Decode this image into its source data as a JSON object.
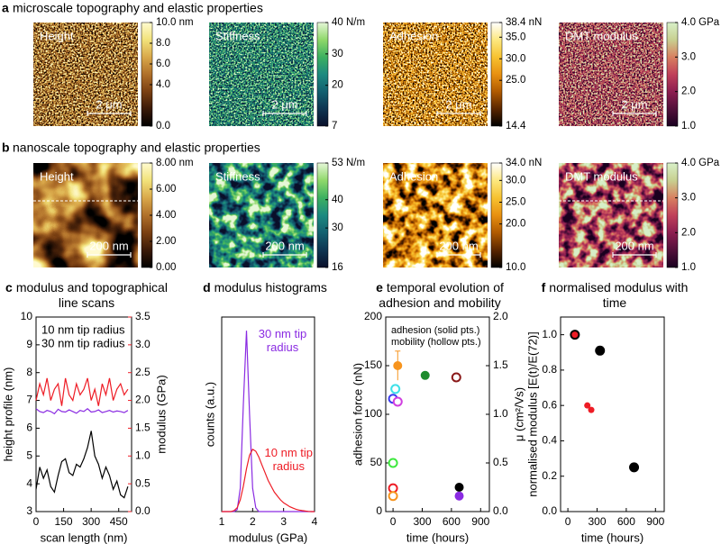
{
  "rows": [
    {
      "label": "a",
      "title": "microscale topography and elastic properties",
      "maps": [
        {
          "name": "Height",
          "scale_bar": "2 μm",
          "lim": [
            0,
            10
          ],
          "ticks": [
            {
              "value": 10,
              "label": "10.0 nm"
            },
            {
              "value": 8,
              "label": "8.0"
            },
            {
              "value": 6,
              "label": "6.0"
            },
            {
              "value": 4,
              "label": "4.0"
            },
            {
              "value": 0,
              "label": "0.0"
            }
          ],
          "colors": [
            "#000000",
            "#3a1a08",
            "#7a3f12",
            "#b0702a",
            "#d9a84a",
            "#f2e27a",
            "#fffbd0"
          ]
        },
        {
          "name": "Stiffness",
          "scale_bar": "2 μm",
          "lim": [
            7,
            40
          ],
          "ticks": [
            {
              "value": 40,
              "label": "40 N/m"
            },
            30,
            20,
            7
          ],
          "colors": [
            "#0a0f2a",
            "#0e3552",
            "#136070",
            "#1c8a80",
            "#3cb060",
            "#8fd86a",
            "#e6f7d8"
          ]
        },
        {
          "name": "Adhesion",
          "scale_bar": "2 μm",
          "lim": [
            14.4,
            38.4
          ],
          "ticks": [
            {
              "value": 38.4,
              "label": "38.4 nN"
            },
            {
              "value": 35,
              "label": "35.0"
            },
            {
              "value": 30,
              "label": "30.0"
            },
            {
              "value": 25,
              "label": "25.0"
            },
            14.4
          ],
          "colors": [
            "#000000",
            "#5a2600",
            "#b05a00",
            "#e89010",
            "#f7c230",
            "#fde880",
            "#ffffff"
          ]
        },
        {
          "name": "DMT modulus",
          "scale_bar": "2 μm",
          "lim": [
            1,
            4
          ],
          "ticks": [
            {
              "value": 4,
              "label": "4.0 GPa"
            },
            {
              "value": 3,
              "label": "3.0"
            },
            {
              "value": 2,
              "label": "2.0"
            },
            {
              "value": 1,
              "label": "1.0"
            }
          ],
          "colors": [
            "#1a0020",
            "#52103a",
            "#8c1e50",
            "#c0405a",
            "#d88060",
            "#c8d090",
            "#d8f0c8"
          ]
        }
      ]
    },
    {
      "label": "b",
      "title": "nanoscale topography and elastic properties",
      "maps": [
        {
          "name": "Height",
          "scale_bar": "200 nm",
          "lim": [
            0,
            8
          ],
          "line_scan": true,
          "ticks": [
            {
              "value": 8,
              "label": "8.00 nm"
            },
            {
              "value": 6,
              "label": "6.00"
            },
            {
              "value": 4,
              "label": "4.00"
            },
            {
              "value": 2,
              "label": "2.00"
            },
            {
              "value": 0,
              "label": "0.00"
            }
          ],
          "colors": [
            "#000000",
            "#3a1a08",
            "#7a3f12",
            "#b0702a",
            "#d9a84a",
            "#f2e27a",
            "#fffbd0"
          ]
        },
        {
          "name": "Stiffness",
          "scale_bar": "200 nm",
          "lim": [
            16,
            53
          ],
          "ticks": [
            {
              "value": 53,
              "label": "53 N/m"
            },
            40,
            30,
            16
          ],
          "colors": [
            "#0a0f2a",
            "#0e3552",
            "#136070",
            "#1c8a80",
            "#3cb060",
            "#8fd86a",
            "#e6f7d8"
          ]
        },
        {
          "name": "Adhesion",
          "scale_bar": "200 nm",
          "lim": [
            10,
            34
          ],
          "ticks": [
            {
              "value": 34,
              "label": "34.0 nN"
            },
            {
              "value": 30,
              "label": "30.0"
            },
            {
              "value": 25,
              "label": "25.0"
            },
            {
              "value": 20,
              "label": "20.0"
            },
            {
              "value": 10,
              "label": "10.0"
            }
          ],
          "colors": [
            "#000000",
            "#5a2600",
            "#b05a00",
            "#e89010",
            "#f7c230",
            "#fde880",
            "#ffffff"
          ]
        },
        {
          "name": "DMT modulus",
          "scale_bar": "200 nm",
          "lim": [
            1,
            4
          ],
          "line_scan": true,
          "ticks": [
            {
              "value": 4,
              "label": "4.0 GPa"
            },
            {
              "value": 3,
              "label": "3.0"
            },
            {
              "value": 2,
              "label": "2.0"
            },
            {
              "value": 1,
              "label": "1.0"
            }
          ],
          "colors": [
            "#1a0020",
            "#52103a",
            "#8c1e50",
            "#c0405a",
            "#d88060",
            "#c8d090",
            "#d8f0c8"
          ]
        }
      ]
    }
  ],
  "chart_data": [
    {
      "type": "line",
      "label": "c",
      "title": "modulus and topographical line scans",
      "xlabel": "scan length (nm)",
      "ylabel": "height profile (nm)",
      "y2label": "modulus (GPa)",
      "y2_color": "#ee1c25",
      "xlim": [
        0,
        520
      ],
      "xticks": [
        0,
        150,
        300,
        450
      ],
      "ylim": [
        3,
        10
      ],
      "yticks": [
        3,
        4,
        5,
        6,
        7,
        8,
        9,
        10
      ],
      "y2lim": [
        0,
        3.5
      ],
      "y2ticks": [
        {
          "value": 0,
          "label": "0.0"
        },
        0.5,
        {
          "value": 1,
          "label": "1.0"
        },
        1.5,
        {
          "value": 2,
          "label": "2.0"
        },
        2.5,
        {
          "value": 3,
          "label": "3.0"
        },
        3.5
      ],
      "legend": "top-left",
      "x": [
        0,
        20,
        40,
        60,
        80,
        100,
        120,
        140,
        160,
        180,
        200,
        220,
        240,
        260,
        280,
        300,
        320,
        340,
        360,
        380,
        400,
        420,
        440,
        460,
        480,
        500
      ],
      "series": [
        {
          "color": "#000000",
          "values": [
            3.8,
            4.6,
            4.2,
            4.5,
            3.9,
            3.7,
            4.3,
            4.8,
            4.9,
            4.4,
            4.3,
            4.7,
            4.6,
            4.9,
            5.3,
            5.9,
            5.0,
            4.7,
            4.2,
            4.6,
            4.3,
            3.8,
            4.1,
            3.6,
            3.5,
            3.9
          ]
        },
        {
          "name": "10 nm tip radius",
          "color": "#ee1c25",
          "axis": "y2",
          "values": [
            2.0,
            2.3,
            2.1,
            2.4,
            2.0,
            2.2,
            2.3,
            1.9,
            2.4,
            2.1,
            2.0,
            2.3,
            2.1,
            2.2,
            2.4,
            2.0,
            2.2,
            1.9,
            2.3,
            2.1,
            2.4,
            2.0,
            2.2,
            2.3,
            2.1,
            2.2
          ]
        },
        {
          "name": "30 nm tip radius",
          "color": "#8a2be2",
          "axis": "y2",
          "values": [
            1.85,
            1.8,
            1.78,
            1.82,
            1.8,
            1.76,
            1.84,
            1.8,
            1.79,
            1.83,
            1.8,
            1.77,
            1.82,
            1.8,
            1.85,
            1.79,
            1.8,
            1.83,
            1.78,
            1.8,
            1.82,
            1.79,
            1.81,
            1.8,
            1.78,
            1.82
          ]
        }
      ]
    },
    {
      "type": "line",
      "label": "d",
      "title": "modulus histograms",
      "xlabel": "modulus (GPa)",
      "ylabel": "counts (a.u.)",
      "xlim": [
        1,
        4
      ],
      "xticks": [
        1,
        2,
        3,
        4
      ],
      "ylim": [
        0,
        1
      ],
      "legend": "at-peak",
      "x": [
        1.0,
        1.1,
        1.2,
        1.3,
        1.4,
        1.5,
        1.6,
        1.7,
        1.8,
        1.9,
        2.0,
        2.1,
        2.2,
        2.3,
        2.4,
        2.5,
        2.6,
        2.7,
        2.8,
        2.9,
        3.0,
        3.1,
        3.2,
        3.3,
        3.4,
        3.5,
        3.6,
        3.7,
        3.8,
        3.9,
        4.0
      ],
      "series": [
        {
          "name": "30 nm tip radius",
          "color": "#8a2be2",
          "values": [
            0,
            0,
            0,
            0,
            0,
            0.01,
            0.12,
            0.55,
            0.93,
            0.5,
            0.12,
            0.02,
            0,
            0,
            0,
            0,
            0,
            0,
            0,
            0,
            0,
            0,
            0,
            0,
            0,
            0,
            0,
            0,
            0,
            0,
            0
          ]
        },
        {
          "name": "10 nm tip radius",
          "color": "#ee1c25",
          "values": [
            0,
            0,
            0,
            0,
            0.005,
            0.02,
            0.06,
            0.13,
            0.22,
            0.29,
            0.32,
            0.31,
            0.28,
            0.24,
            0.2,
            0.16,
            0.13,
            0.1,
            0.08,
            0.06,
            0.045,
            0.035,
            0.025,
            0.018,
            0.012,
            0.008,
            0.005,
            0.003,
            0.001,
            0,
            0
          ]
        }
      ]
    },
    {
      "type": "scatter",
      "label": "e",
      "title": "temporal evolution of adhesion and mobility",
      "xlabel": "time (hours)",
      "ylabel": "adhesion force (nN)",
      "y2label": "μ (cm²/Vs)",
      "xlim": [
        -75,
        990
      ],
      "xticks": [
        0,
        300,
        600,
        900
      ],
      "ylim": [
        0,
        200
      ],
      "yticks": [
        0,
        50,
        100,
        150,
        200
      ],
      "y2lim": [
        0,
        2
      ],
      "y2ticks": [
        {
          "value": 0,
          "label": "0.0"
        },
        0.5,
        {
          "value": 1,
          "label": "1.0"
        },
        1.5,
        {
          "value": 2,
          "label": "2.0"
        }
      ],
      "legend": "top-left",
      "series": [
        {
          "name": "adhesion (solid pts.)",
          "x": [
            48,
            330,
            680,
            680
          ],
          "values": [
            150,
            140,
            25,
            16
          ],
          "errors": [
            15,
            null,
            null,
            null
          ],
          "colors": [
            "#f7941d",
            "#1e8c2e",
            "#000000",
            "#8a2be2"
          ]
        },
        {
          "name": "mobility (hollow pts.)",
          "axis": "y2",
          "hollow": true,
          "x": [
            24,
            0,
            48,
            0,
            0,
            0,
            650
          ],
          "values": [
            1.26,
            1.16,
            1.13,
            0.5,
            0.24,
            0.16,
            1.38
          ],
          "colors": [
            "#3ee0e8",
            "#3b3bf0",
            "#d040e0",
            "#3ee83e",
            "#ee1c25",
            "#f7941d",
            "#8b1a1a"
          ]
        }
      ]
    },
    {
      "type": "scatter",
      "label": "f",
      "title": "normalised modulus with time",
      "xlabel": "time (hours)",
      "ylabel": "normalised modulus [E(t)/E(72)]",
      "xlim": [
        -75,
        990
      ],
      "xticks": [
        0,
        300,
        600,
        900
      ],
      "ylim": [
        0,
        1.1
      ],
      "yticks": [
        {
          "value": 0,
          "label": "0.0"
        },
        0.2,
        0.4,
        0.6,
        0.8,
        {
          "value": 1,
          "label": "1.0"
        }
      ],
      "series": [
        {
          "color": "#000000",
          "marker_size": 5.5,
          "x": [
            72,
            330,
            680
          ],
          "values": [
            1.0,
            0.91,
            0.25
          ]
        },
        {
          "color": "#ee1c25",
          "marker_size": 3.5,
          "x": [
            72,
            200,
            240
          ],
          "values": [
            1.0,
            0.6,
            0.575
          ]
        }
      ]
    }
  ]
}
